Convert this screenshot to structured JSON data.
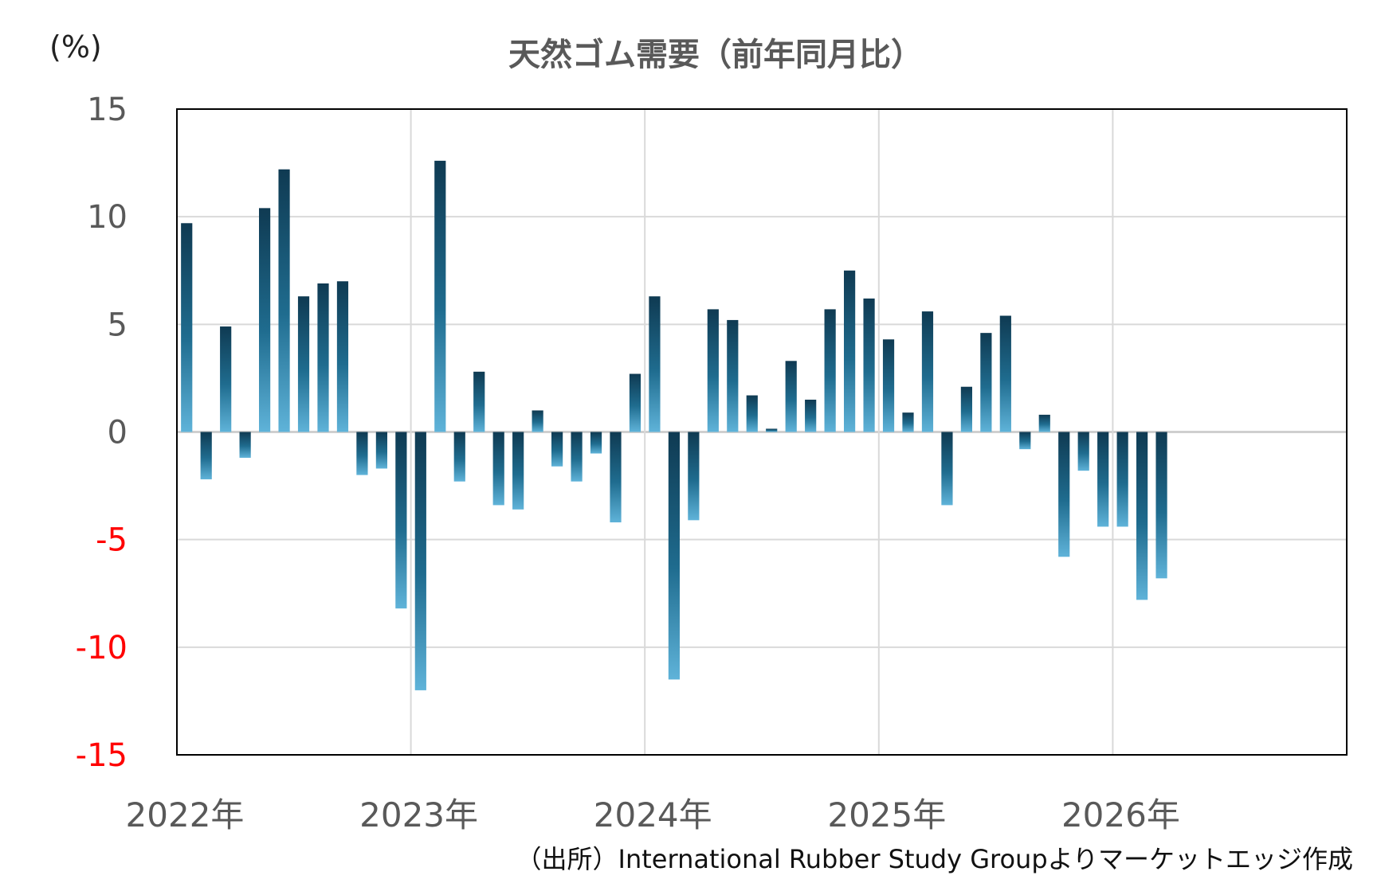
{
  "chart_data": {
    "type": "bar",
    "title": "天然ゴム需要（前年同月比）",
    "unit_label": "(%)",
    "ylim": [
      -15,
      15
    ],
    "yticks": [
      15,
      10,
      5,
      0,
      -5,
      -10,
      -15
    ],
    "x_labels": [
      "2022年",
      "2023年",
      "2024年",
      "2025年",
      "2026年"
    ],
    "x_range_months": 60,
    "grid": true,
    "series": [
      {
        "values": [
          9.7,
          -2.2,
          4.9,
          -1.2,
          10.4,
          12.2,
          6.3,
          6.9,
          7.0,
          -2.0,
          -1.7,
          -8.2,
          -12.0,
          12.6,
          -2.3,
          2.8,
          -3.4,
          -3.6,
          1.0,
          -1.6,
          -2.3,
          -1.0,
          -4.2,
          2.7,
          6.3,
          -11.5,
          -4.1,
          5.7,
          5.2,
          1.7,
          0.15,
          3.3,
          1.5,
          5.7,
          7.5,
          6.2,
          4.3,
          0.9,
          5.6,
          -3.4,
          2.1,
          4.6,
          5.4,
          -0.8,
          0.8,
          -5.8,
          -1.8,
          -4.4,
          -4.4,
          -7.8,
          -6.8
        ]
      }
    ],
    "colors": {
      "bar_top": "#0f3a52",
      "bar_bottom": "#5fb3d9",
      "negative_tick": "#ff0000",
      "positive_tick": "#595959",
      "grid": "#d9d9d9",
      "axis": "#000000"
    }
  },
  "source_note": "（出所）International Rubber Study Groupよりマーケットエッジ作成"
}
